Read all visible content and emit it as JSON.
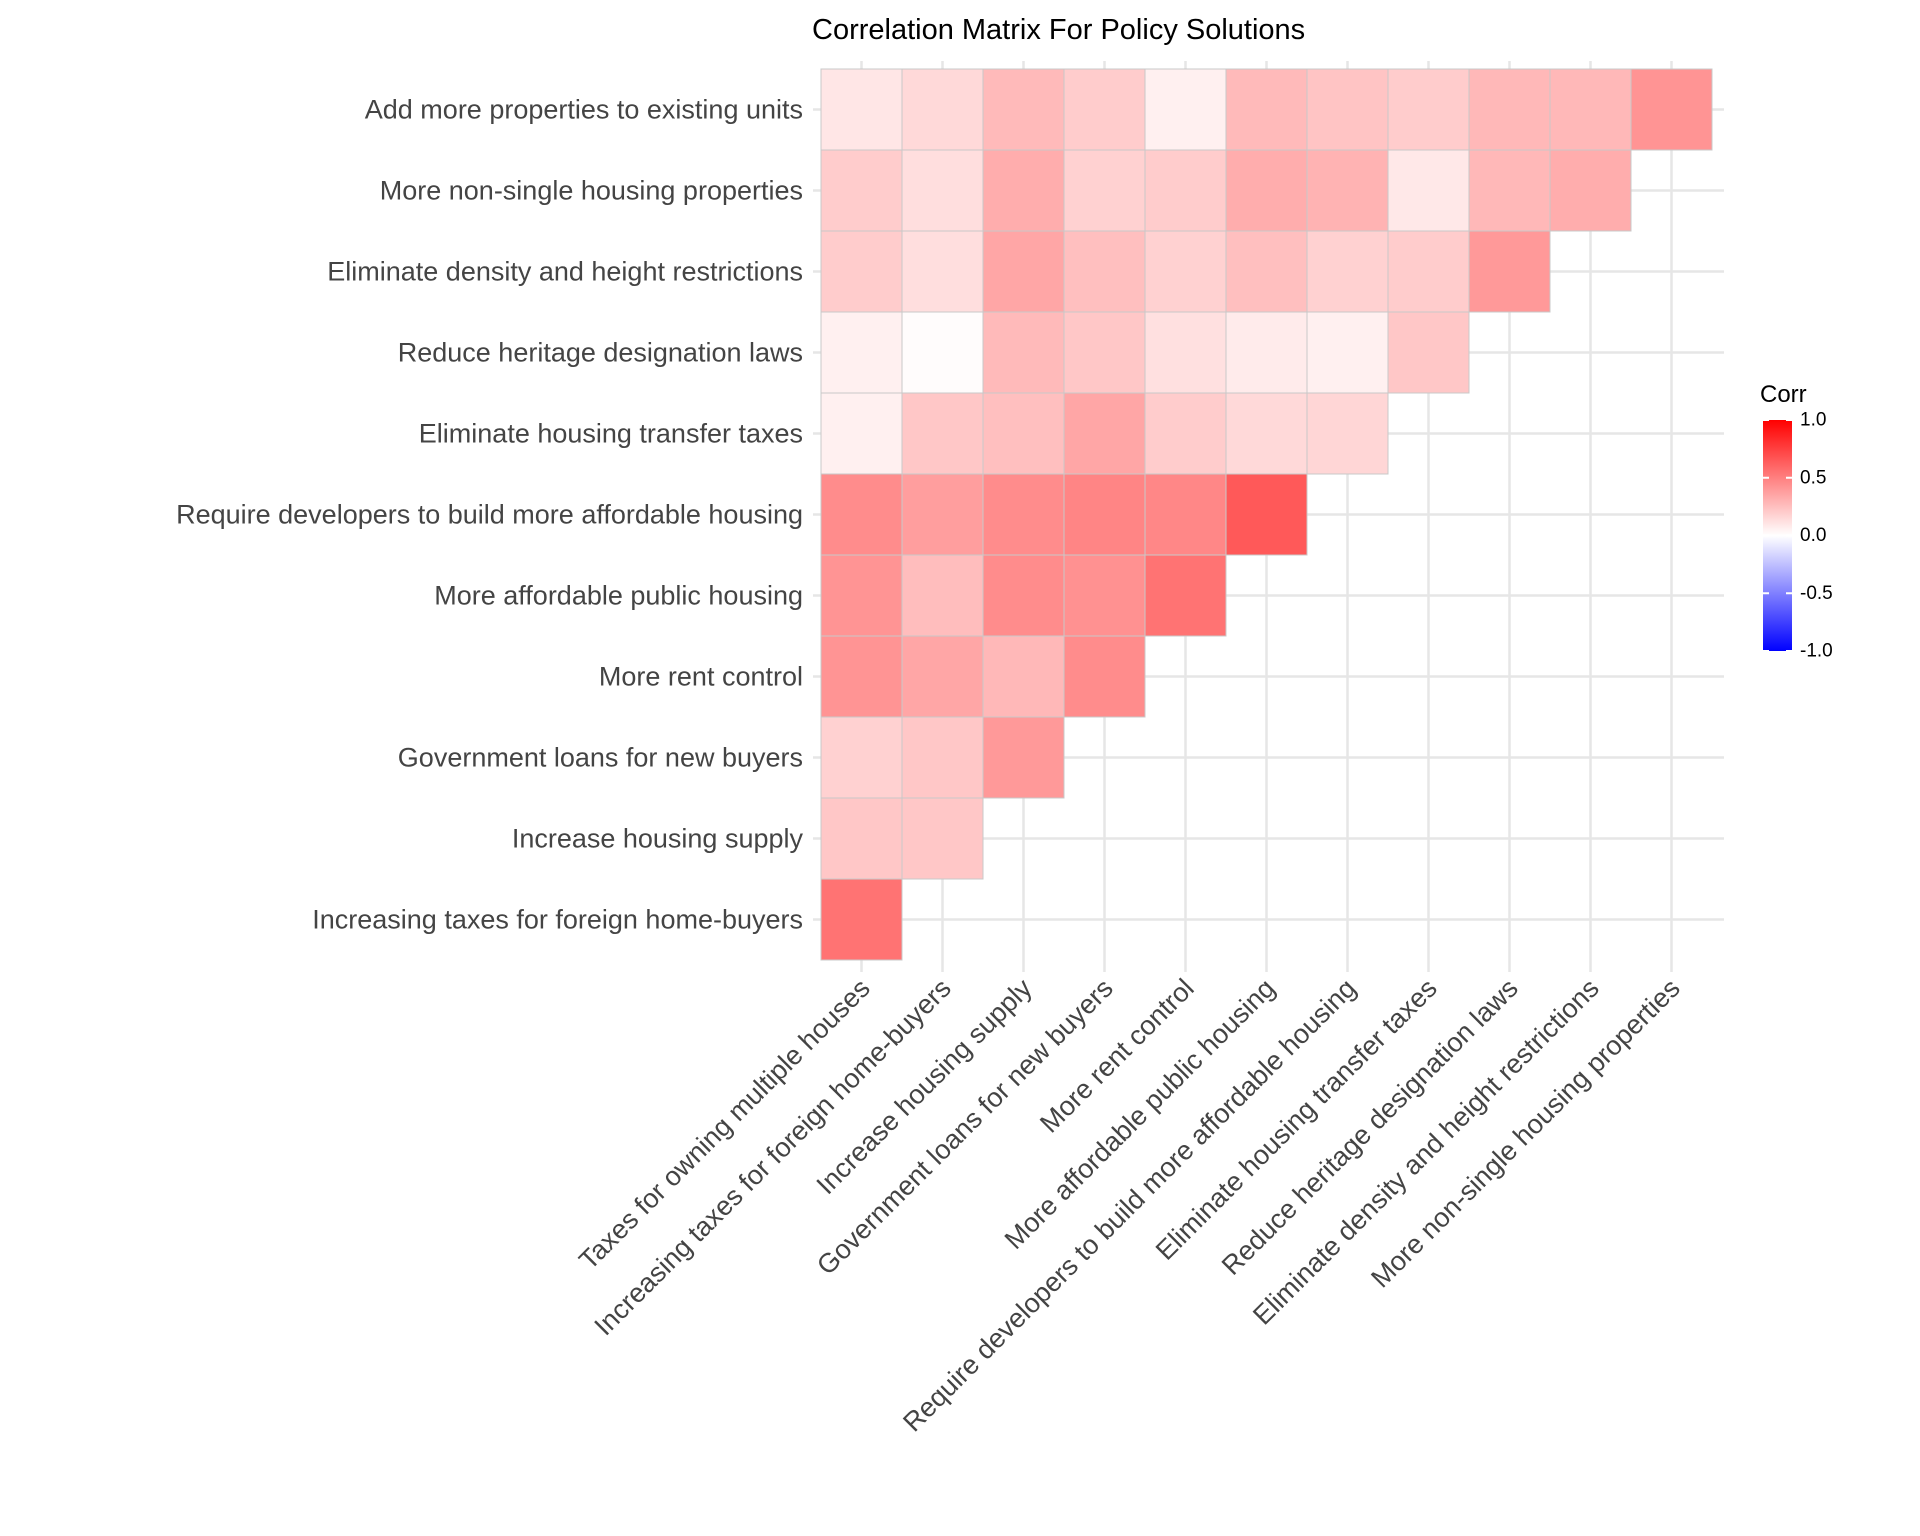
{
  "chart_data": {
    "type": "heatmap",
    "title": "Correlation Matrix For Policy Solutions",
    "xlabel": "",
    "ylabel": "",
    "x_categories": [
      "Taxes for owning multiple houses",
      "Increasing taxes for foreign home-buyers",
      "Increase housing supply",
      "Government loans for new buyers",
      "More rent control",
      "More affordable public housing",
      "Require developers to build more affordable housing",
      "Eliminate housing transfer taxes",
      "Reduce heritage designation laws",
      "Eliminate density and height restrictions",
      "More non-single housing properties"
    ],
    "y_categories": [
      "Increasing taxes for foreign home-buyers",
      "Increase housing supply",
      "Government loans for new buyers",
      "More rent control",
      "More affordable public housing",
      "Require developers to build more affordable housing",
      "Eliminate housing transfer taxes",
      "Reduce heritage designation laws",
      "Eliminate density and height restrictions",
      "More non-single housing properties",
      "Add more properties to existing units"
    ],
    "values": [
      [
        0.55
      ],
      [
        0.22,
        0.22
      ],
      [
        0.18,
        0.22,
        0.4
      ],
      [
        0.42,
        0.35,
        0.28,
        0.45
      ],
      [
        0.42,
        0.26,
        0.45,
        0.43,
        0.55
      ],
      [
        0.45,
        0.38,
        0.45,
        0.48,
        0.47,
        0.65
      ],
      [
        0.06,
        0.22,
        0.25,
        0.35,
        0.2,
        0.15,
        0.16
      ],
      [
        0.06,
        0.01,
        0.27,
        0.22,
        0.12,
        0.08,
        0.06,
        0.22
      ],
      [
        0.2,
        0.13,
        0.35,
        0.25,
        0.18,
        0.25,
        0.18,
        0.2,
        0.4
      ],
      [
        0.2,
        0.13,
        0.32,
        0.18,
        0.2,
        0.32,
        0.3,
        0.09,
        0.28,
        0.32
      ],
      [
        0.1,
        0.15,
        0.27,
        0.2,
        0.06,
        0.27,
        0.23,
        0.2,
        0.28,
        0.28,
        0.42
      ]
    ],
    "color_scale": {
      "low": "#0000ff",
      "mid": "#ffffff",
      "high": "#ff0000",
      "range": [
        -1,
        1
      ]
    },
    "legend": {
      "title": "Corr",
      "ticks": [
        1.0,
        0.5,
        0.0,
        -0.5,
        -1.0
      ],
      "tick_labels": [
        "1.0",
        "0.5",
        "0.0",
        "-0.5",
        "-1.0"
      ],
      "placement": "right"
    },
    "grid": true
  }
}
